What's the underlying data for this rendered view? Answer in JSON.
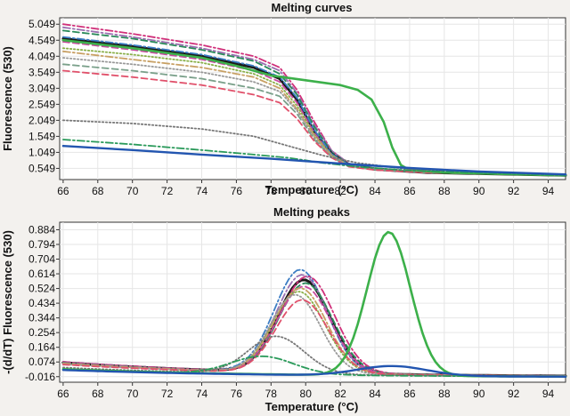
{
  "chart_data": [
    {
      "type": "line",
      "title": "Melting curves",
      "xlabel": "Temperature (°C)",
      "ylabel": "Fluorescence (530)",
      "xlim": [
        65.8,
        95
      ],
      "ylim": [
        0.2,
        5.25
      ],
      "xticks": [
        "66",
        "68",
        "70",
        "72",
        "74",
        "76",
        "78",
        "80",
        "82",
        "84",
        "86",
        "88",
        "90",
        "92",
        "94"
      ],
      "yticks": [
        "0.549",
        "1.049",
        "1.549",
        "2.049",
        "2.549",
        "3.049",
        "3.549",
        "4.049",
        "4.549",
        "5.049"
      ],
      "grid": true,
      "series": [
        {
          "color": "#d0307a",
          "style": "dashdot",
          "width": 1.8,
          "points": [
            [
              66,
              5.05
            ],
            [
              70,
              4.75
            ],
            [
              74,
              4.4
            ],
            [
              77,
              4.05
            ],
            [
              78.5,
              3.7
            ],
            [
              79.5,
              3.0
            ],
            [
              80.5,
              2.0
            ],
            [
              81.5,
              1.1
            ],
            [
              82.5,
              0.7
            ],
            [
              84,
              0.55
            ],
            [
              87,
              0.42
            ],
            [
              95,
              0.33
            ]
          ]
        },
        {
          "color": "#9a6fb0",
          "style": "dashdot",
          "width": 1.8,
          "points": [
            [
              66,
              4.95
            ],
            [
              70,
              4.65
            ],
            [
              74,
              4.3
            ],
            [
              77,
              3.95
            ],
            [
              78.5,
              3.6
            ],
            [
              79.5,
              2.9
            ],
            [
              80.5,
              1.9
            ],
            [
              81.5,
              1.1
            ],
            [
              82.5,
              0.7
            ],
            [
              84,
              0.55
            ],
            [
              87,
              0.42
            ],
            [
              95,
              0.33
            ]
          ]
        },
        {
          "color": "#2a8a5a",
          "style": "dashed",
          "width": 1.8,
          "points": [
            [
              66,
              4.85
            ],
            [
              70,
              4.6
            ],
            [
              74,
              4.25
            ],
            [
              77,
              3.9
            ],
            [
              78.5,
              3.5
            ],
            [
              79.5,
              2.85
            ],
            [
              80.5,
              1.85
            ],
            [
              81.5,
              1.05
            ],
            [
              82.5,
              0.68
            ],
            [
              84,
              0.55
            ],
            [
              87,
              0.42
            ],
            [
              95,
              0.33
            ]
          ]
        },
        {
          "color": "#1a1a1a",
          "style": "solid",
          "width": 3.0,
          "points": [
            [
              66,
              4.6
            ],
            [
              70,
              4.35
            ],
            [
              74,
              4.05
            ],
            [
              77,
              3.7
            ],
            [
              78.5,
              3.35
            ],
            [
              79.5,
              2.7
            ],
            [
              80.5,
              1.7
            ],
            [
              81.5,
              1.0
            ],
            [
              82.5,
              0.65
            ],
            [
              84,
              0.52
            ],
            [
              87,
              0.42
            ],
            [
              95,
              0.33
            ]
          ]
        },
        {
          "color": "#c84aa0",
          "style": "dashed",
          "width": 1.8,
          "points": [
            [
              66,
              4.5
            ],
            [
              70,
              4.25
            ],
            [
              74,
              3.95
            ],
            [
              77,
              3.6
            ],
            [
              78.5,
              3.25
            ],
            [
              79.5,
              2.6
            ],
            [
              80.5,
              1.65
            ],
            [
              81.5,
              0.98
            ],
            [
              82.5,
              0.65
            ],
            [
              84,
              0.52
            ],
            [
              87,
              0.42
            ],
            [
              95,
              0.33
            ]
          ]
        },
        {
          "color": "#3c7dc4",
          "style": "dashdot",
          "width": 1.8,
          "points": [
            [
              66,
              4.65
            ],
            [
              70,
              4.4
            ],
            [
              74,
              4.1
            ],
            [
              77,
              3.75
            ],
            [
              78.5,
              3.4
            ],
            [
              79.5,
              2.75
            ],
            [
              80.5,
              1.75
            ],
            [
              81.5,
              1.0
            ],
            [
              82.5,
              0.66
            ],
            [
              84,
              0.53
            ],
            [
              87,
              0.42
            ],
            [
              95,
              0.33
            ]
          ]
        },
        {
          "color": "#8ab04a",
          "style": "dotted",
          "width": 1.8,
          "points": [
            [
              66,
              4.3
            ],
            [
              70,
              4.1
            ],
            [
              74,
              3.85
            ],
            [
              77,
              3.5
            ],
            [
              78.5,
              3.15
            ],
            [
              79.5,
              2.5
            ],
            [
              80.5,
              1.6
            ],
            [
              81.5,
              0.96
            ],
            [
              82.5,
              0.64
            ],
            [
              84,
              0.52
            ],
            [
              87,
              0.42
            ],
            [
              95,
              0.33
            ]
          ]
        },
        {
          "color": "#c8a064",
          "style": "dashdot",
          "width": 1.8,
          "points": [
            [
              66,
              4.2
            ],
            [
              70,
              3.95
            ],
            [
              74,
              3.7
            ],
            [
              77,
              3.4
            ],
            [
              78.5,
              3.05
            ],
            [
              79.5,
              2.4
            ],
            [
              80.5,
              1.55
            ],
            [
              81.5,
              0.95
            ],
            [
              82.5,
              0.63
            ],
            [
              84,
              0.52
            ],
            [
              87,
              0.42
            ],
            [
              95,
              0.33
            ]
          ]
        },
        {
          "color": "#999999",
          "style": "dotted",
          "width": 1.8,
          "points": [
            [
              66,
              4.0
            ],
            [
              70,
              3.8
            ],
            [
              74,
              3.55
            ],
            [
              77,
              3.25
            ],
            [
              78.5,
              2.95
            ],
            [
              79.5,
              2.35
            ],
            [
              80.5,
              1.5
            ],
            [
              81.5,
              0.92
            ],
            [
              82.5,
              0.62
            ],
            [
              84,
              0.51
            ],
            [
              87,
              0.42
            ],
            [
              95,
              0.33
            ]
          ]
        },
        {
          "color": "#7aa08a",
          "style": "dashed",
          "width": 1.8,
          "points": [
            [
              66,
              3.8
            ],
            [
              70,
              3.6
            ],
            [
              74,
              3.35
            ],
            [
              77,
              3.05
            ],
            [
              78.5,
              2.8
            ],
            [
              79.5,
              2.25
            ],
            [
              80.5,
              1.45
            ],
            [
              81.5,
              0.9
            ],
            [
              82.5,
              0.62
            ],
            [
              84,
              0.51
            ],
            [
              87,
              0.42
            ],
            [
              95,
              0.33
            ]
          ]
        },
        {
          "color": "#e0506a",
          "style": "dashed",
          "width": 1.8,
          "points": [
            [
              66,
              3.6
            ],
            [
              70,
              3.4
            ],
            [
              74,
              3.15
            ],
            [
              77,
              2.85
            ],
            [
              78.5,
              2.6
            ],
            [
              79.5,
              2.1
            ],
            [
              80.5,
              1.4
            ],
            [
              81.5,
              0.88
            ],
            [
              82.5,
              0.6
            ],
            [
              84,
              0.5
            ],
            [
              87,
              0.42
            ],
            [
              95,
              0.33
            ]
          ]
        },
        {
          "color": "#3cb04a",
          "style": "solid",
          "width": 2.6,
          "points": [
            [
              66,
              4.55
            ],
            [
              70,
              4.3
            ],
            [
              74,
              4.0
            ],
            [
              76,
              3.75
            ],
            [
              78,
              3.45
            ],
            [
              80,
              3.3
            ],
            [
              82,
              3.15
            ],
            [
              83,
              3.0
            ],
            [
              83.8,
              2.7
            ],
            [
              84.5,
              2.0
            ],
            [
              85,
              1.2
            ],
            [
              85.5,
              0.65
            ],
            [
              86,
              0.5
            ],
            [
              88,
              0.42
            ],
            [
              95,
              0.33
            ]
          ]
        },
        {
          "color": "#777777",
          "style": "dotted",
          "width": 1.8,
          "points": [
            [
              66,
              2.05
            ],
            [
              70,
              1.95
            ],
            [
              74,
              1.78
            ],
            [
              77,
              1.55
            ],
            [
              79,
              1.25
            ],
            [
              81,
              0.95
            ],
            [
              83,
              0.72
            ],
            [
              86,
              0.52
            ],
            [
              95,
              0.33
            ]
          ]
        },
        {
          "color": "#2a9a5a",
          "style": "dashdot",
          "width": 1.8,
          "points": [
            [
              66,
              1.45
            ],
            [
              70,
              1.3
            ],
            [
              74,
              1.12
            ],
            [
              77,
              0.98
            ],
            [
              79,
              0.88
            ],
            [
              81,
              0.72
            ],
            [
              83,
              0.6
            ],
            [
              86,
              0.48
            ],
            [
              95,
              0.33
            ]
          ]
        },
        {
          "color": "#2255b0",
          "style": "solid",
          "width": 2.4,
          "points": [
            [
              66,
              1.25
            ],
            [
              70,
              1.12
            ],
            [
              74,
              0.98
            ],
            [
              78,
              0.85
            ],
            [
              82,
              0.7
            ],
            [
              86,
              0.56
            ],
            [
              90,
              0.45
            ],
            [
              95,
              0.36
            ]
          ]
        }
      ]
    },
    {
      "type": "line",
      "title": "Melting peaks",
      "xlabel": "Temperature (°C)",
      "ylabel": "-(d/dT) Fluorescence (530)",
      "xlim": [
        65.8,
        95
      ],
      "ylim": [
        -0.05,
        0.93
      ],
      "xticks": [
        "66",
        "68",
        "70",
        "72",
        "74",
        "76",
        "78",
        "80",
        "82",
        "84",
        "86",
        "88",
        "90",
        "92",
        "94"
      ],
      "yticks": [
        "-0.016",
        "0.074",
        "0.164",
        "0.254",
        "0.344",
        "0.434",
        "0.524",
        "0.614",
        "0.704",
        "0.794",
        "0.884"
      ],
      "grid": true,
      "series": [
        {
          "color": "#3c7dc4",
          "style": "dashdot",
          "width": 1.8,
          "peak": {
            "x": 79.7,
            "y": 0.63,
            "sigma": 1.5
          },
          "base": 0.095
        },
        {
          "color": "#1a1a1a",
          "style": "solid",
          "width": 3.0,
          "peak": {
            "x": 79.9,
            "y": 0.57,
            "sigma": 1.5
          },
          "base": 0.09
        },
        {
          "color": "#d0307a",
          "style": "dashdot",
          "width": 1.8,
          "peak": {
            "x": 80.1,
            "y": 0.59,
            "sigma": 1.55
          },
          "base": 0.095
        },
        {
          "color": "#9a6fb0",
          "style": "dashdot",
          "width": 1.8,
          "peak": {
            "x": 79.8,
            "y": 0.6,
            "sigma": 1.5
          },
          "base": 0.09
        },
        {
          "color": "#2a8a5a",
          "style": "dashed",
          "width": 1.8,
          "peak": {
            "x": 80.0,
            "y": 0.55,
            "sigma": 1.55
          },
          "base": 0.088
        },
        {
          "color": "#c84aa0",
          "style": "dashed",
          "width": 1.8,
          "peak": {
            "x": 79.9,
            "y": 0.53,
            "sigma": 1.55
          },
          "base": 0.085
        },
        {
          "color": "#8ab04a",
          "style": "dotted",
          "width": 1.8,
          "peak": {
            "x": 79.6,
            "y": 0.5,
            "sigma": 1.5
          },
          "base": 0.082
        },
        {
          "color": "#c8a064",
          "style": "dashdot",
          "width": 1.8,
          "peak": {
            "x": 79.7,
            "y": 0.52,
            "sigma": 1.5
          },
          "base": 0.085
        },
        {
          "color": "#999999",
          "style": "dotted",
          "width": 1.8,
          "peak": {
            "x": 79.4,
            "y": 0.48,
            "sigma": 1.45
          },
          "base": 0.08
        },
        {
          "color": "#e0506a",
          "style": "dashed",
          "width": 1.8,
          "peak": {
            "x": 79.8,
            "y": 0.45,
            "sigma": 1.5
          },
          "base": 0.078
        },
        {
          "color": "#777777",
          "style": "dotted",
          "width": 1.8,
          "peak": {
            "x": 78.3,
            "y": 0.23,
            "sigma": 1.6
          },
          "base": 0.06
        },
        {
          "color": "#2a9a5a",
          "style": "dashdot",
          "width": 1.8,
          "peak": {
            "x": 77.5,
            "y": 0.11,
            "sigma": 1.8
          },
          "base": 0.05
        },
        {
          "color": "#3cb04a",
          "style": "solid",
          "width": 2.6,
          "peak": {
            "x": 84.8,
            "y": 0.88,
            "sigma": 1.25
          },
          "base": 0.05
        },
        {
          "color": "#2255b0",
          "style": "solid",
          "width": 2.4,
          "peak": {
            "x": 85.0,
            "y": 0.06,
            "sigma": 2.0
          },
          "base": 0.045
        }
      ]
    }
  ]
}
